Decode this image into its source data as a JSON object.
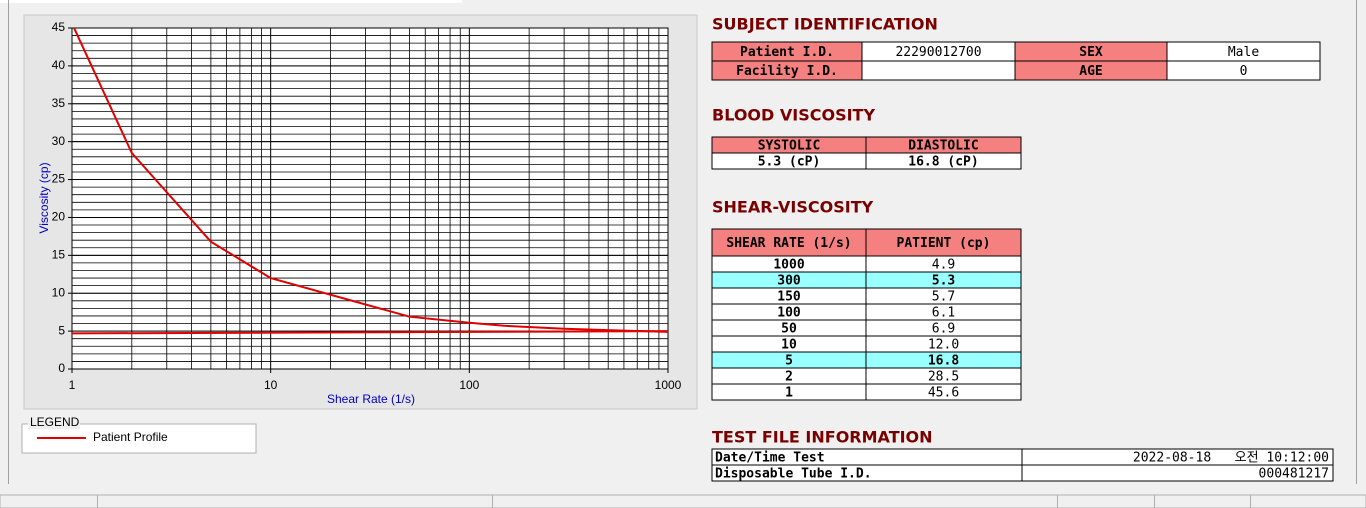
{
  "chart_data": {
    "type": "line",
    "xscale": "log",
    "x_label": "Shear Rate (1/s)",
    "y_label": "Viscosity (cp)",
    "xlim": [
      1,
      1000
    ],
    "xticks": [
      1,
      10,
      100,
      1000
    ],
    "ylim": [
      0,
      45
    ],
    "yticks": [
      0,
      5,
      10,
      15,
      20,
      25,
      30,
      35,
      40,
      45
    ],
    "grid": true,
    "minor_grid": true,
    "legend_title": "LEGEND",
    "legend": "bottom-left",
    "series": [
      {
        "name": "Patient Profile",
        "color": "#e00000",
        "x": [
          1,
          2,
          5,
          10,
          50,
          100,
          150,
          300,
          1000
        ],
        "values": [
          45.6,
          28.5,
          16.8,
          12.0,
          6.9,
          6.1,
          5.7,
          5.3,
          4.9
        ]
      },
      {
        "color": "#e00000",
        "x": [
          1,
          1000
        ],
        "values": [
          4.7,
          5.0
        ]
      }
    ]
  },
  "subject_identification": {
    "title": "SUBJECT IDENTIFICATION",
    "rows": [
      [
        "Patient I.D.",
        "22290012700",
        "SEX",
        "Male"
      ],
      [
        "Facility I.D.",
        null,
        "AGE",
        "0"
      ]
    ]
  },
  "blood_viscosity": {
    "title": "BLOOD VISCOSITY",
    "header": [
      "SYSTOLIC",
      "DIASTOLIC"
    ],
    "rows": [
      [
        "5.3 (cP)",
        "16.8 (cP)"
      ]
    ]
  },
  "shear_viscosity": {
    "title": "SHEAR-VISCOSITY",
    "header": [
      "SHEAR RATE (1/s)",
      "PATIENT (cp)"
    ],
    "rows": [
      {
        "cells": [
          "1000",
          "4.9"
        ]
      },
      {
        "cells": [
          "300",
          "5.3"
        ],
        "highlight": true
      },
      {
        "cells": [
          "150",
          "5.7"
        ]
      },
      {
        "cells": [
          "100",
          "6.1"
        ]
      },
      {
        "cells": [
          "50",
          "6.9"
        ]
      },
      {
        "cells": [
          "10",
          "12.0"
        ]
      },
      {
        "cells": [
          "5",
          "16.8"
        ],
        "highlight": true
      },
      {
        "cells": [
          "2",
          "28.5"
        ]
      },
      {
        "cells": [
          "1",
          "45.6"
        ]
      }
    ]
  },
  "test_file_information": {
    "title": "TEST FILE INFORMATION",
    "rows": [
      [
        "Date/Time Test",
        "2022-08-18   오전 10:12:00"
      ],
      [
        "Disposable Tube I.D.",
        "000481217"
      ]
    ]
  }
}
